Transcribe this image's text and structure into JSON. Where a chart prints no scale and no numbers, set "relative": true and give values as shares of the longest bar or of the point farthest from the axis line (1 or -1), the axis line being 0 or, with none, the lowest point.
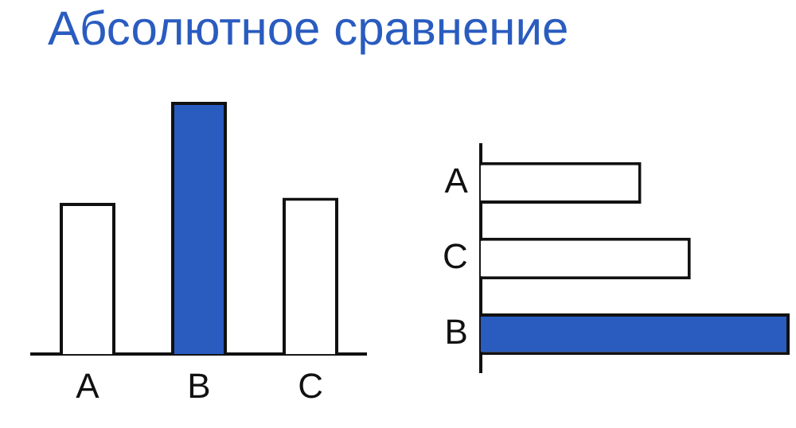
{
  "chart_data": [
    {
      "type": "bar",
      "title": "Абсолютное сравнение",
      "categories": [
        "A",
        "B",
        "C"
      ],
      "values": [
        0.6,
        1,
        0.62
      ],
      "colors": [
        "#ffffff",
        "#2a5cc0",
        "#ffffff"
      ],
      "relative": true
    },
    {
      "type": "bar",
      "orientation": "horizontal",
      "categories": [
        "A",
        "C",
        "B"
      ],
      "values": [
        0.52,
        0.68,
        1
      ],
      "colors": [
        "#ffffff",
        "#ffffff",
        "#2a5cc0"
      ],
      "relative": true
    }
  ]
}
